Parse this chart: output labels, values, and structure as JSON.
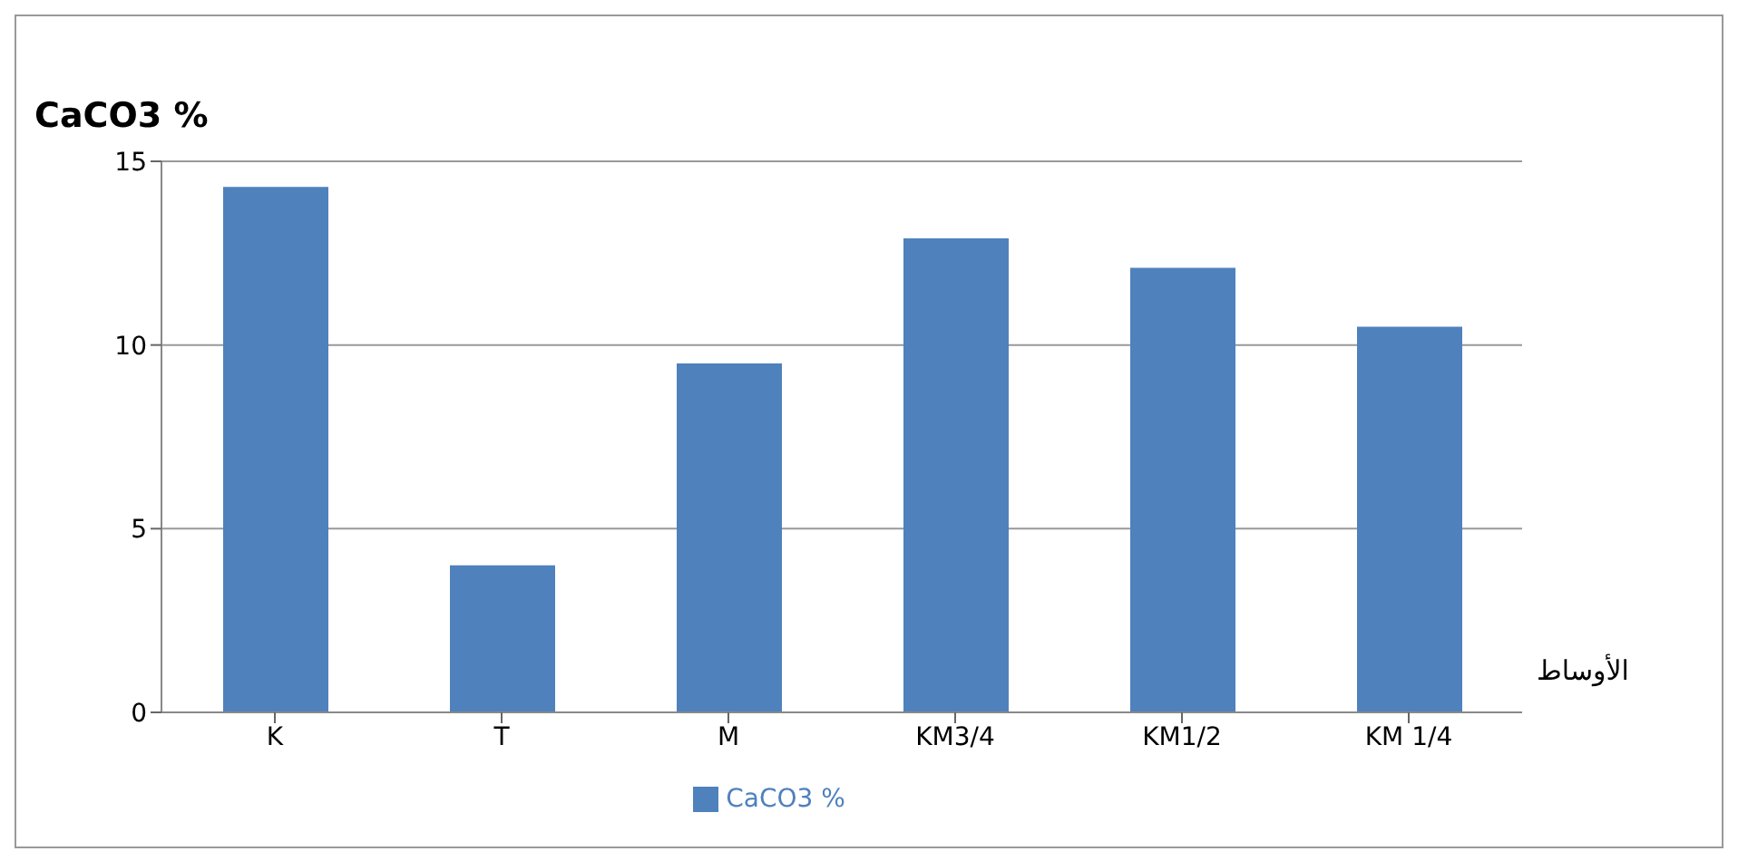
{
  "chart_data": {
    "type": "bar",
    "ylabel": "CaCO3  %",
    "xlabel": "الأوساط",
    "categories": [
      "K",
      "T",
      "M",
      "KM3/4",
      "KM1/2",
      "KM 1/4"
    ],
    "series": [
      {
        "name": "CaCO3  %",
        "color": "#4f81bd",
        "values": [
          14.3,
          4.0,
          9.5,
          12.9,
          12.1,
          10.5
        ]
      }
    ],
    "ylim": [
      0,
      15
    ],
    "yticks": [
      0,
      5,
      10,
      15
    ],
    "grid": "y",
    "legend": "bottom"
  }
}
